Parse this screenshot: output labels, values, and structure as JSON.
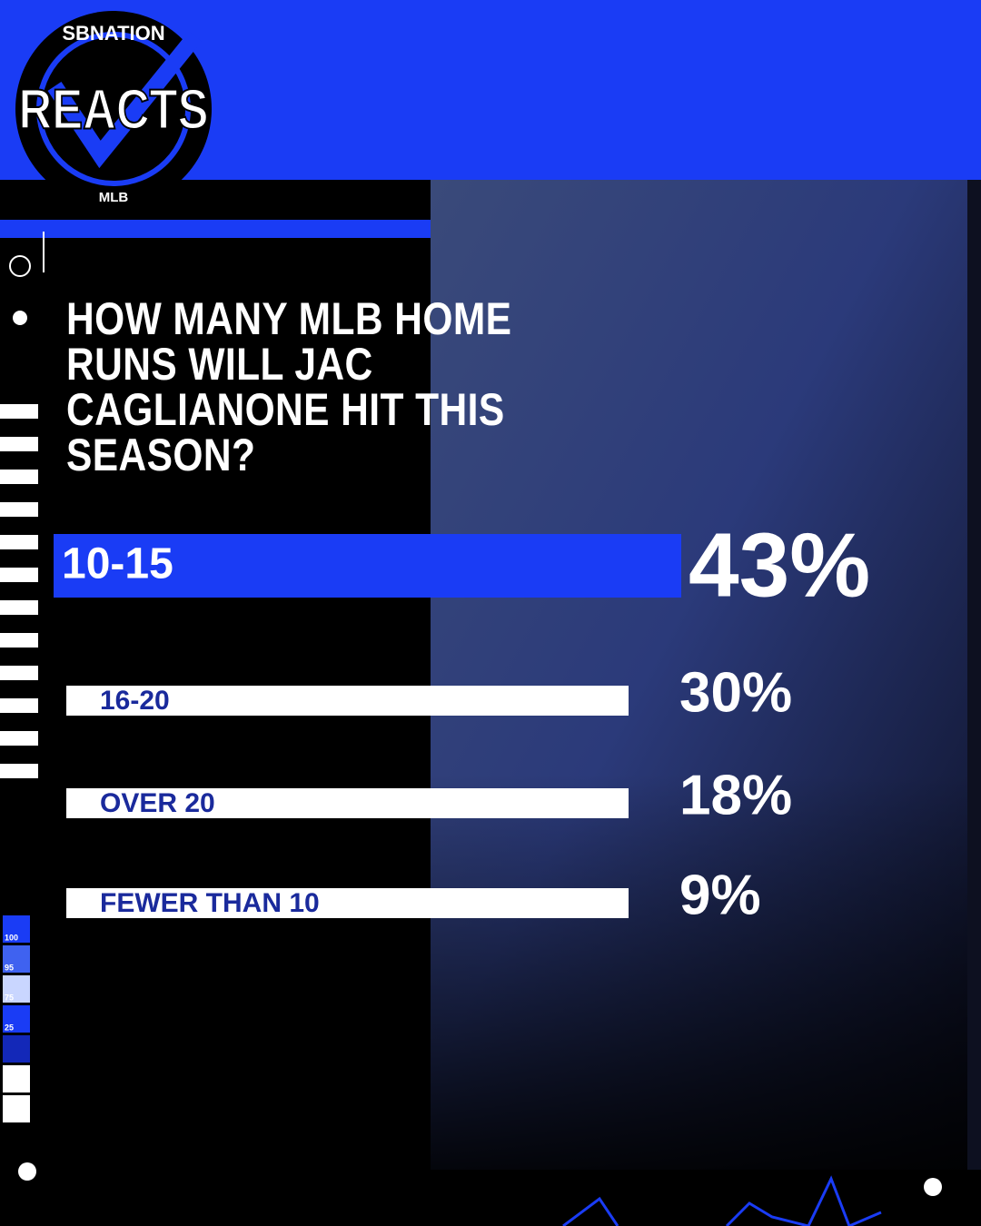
{
  "brand": {
    "top": "SBNATION",
    "main": "REACTS",
    "bottom": "MLB"
  },
  "meter_labels": [
    100,
    95,
    75,
    25
  ],
  "chart_data": {
    "type": "bar",
    "title": "HOW MANY MLB HOME RUNS WILL JAC CAGLIANONE HIT THIS SEASON?",
    "categories": [
      "10-15",
      "16-20",
      "OVER 20",
      "FEWER THAN 10"
    ],
    "values": [
      43,
      30,
      18,
      9
    ],
    "value_labels": [
      "43%",
      "30%",
      "18%",
      "9%"
    ],
    "color": "#ffffff",
    "highlight_color": "#1a3cf5"
  }
}
